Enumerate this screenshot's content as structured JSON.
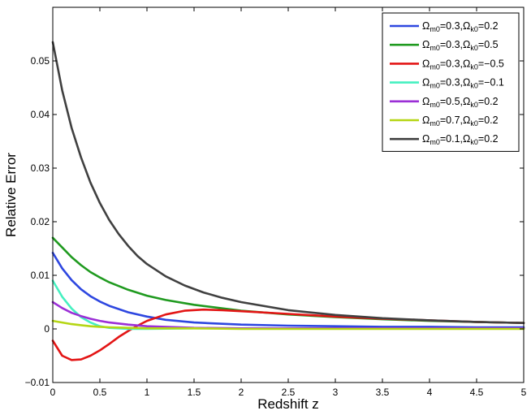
{
  "chart_data": {
    "type": "line",
    "title": "",
    "xlabel": "Redshift z",
    "ylabel": "Relative Error",
    "xlim": [
      0,
      5
    ],
    "ylim": [
      -0.01,
      0.06
    ],
    "xticks": [
      0,
      0.5,
      1,
      1.5,
      2,
      2.5,
      3,
      3.5,
      4,
      4.5,
      5
    ],
    "xtick_labels": [
      "0",
      "0.5",
      "1",
      "1.5",
      "2",
      "2.5",
      "3",
      "3.5",
      "4",
      "4.5",
      "5"
    ],
    "yticks": [
      -0.01,
      0,
      0.01,
      0.02,
      0.03,
      0.04,
      0.05
    ],
    "ytick_labels": [
      "−0.01",
      "0",
      "0.01",
      "0.02",
      "0.03",
      "0.04",
      "0.05"
    ],
    "grid": false,
    "legend_position": "top-right",
    "series": [
      {
        "label": [
          {
            "t": "Ω"
          },
          {
            "t": "m0",
            "sub": true
          },
          {
            "t": "=0.3,Ω"
          },
          {
            "t": "k0",
            "sub": true
          },
          {
            "t": "=0.2"
          }
        ],
        "color": "#2e47e0",
        "x": [
          0,
          0.1,
          0.2,
          0.3,
          0.4,
          0.5,
          0.6,
          0.8,
          1.0,
          1.2,
          1.5,
          2.0,
          2.5,
          3.0,
          3.5,
          4.0,
          4.5,
          5.0
        ],
        "y": [
          0.0142,
          0.0113,
          0.0091,
          0.0074,
          0.0061,
          0.0051,
          0.0043,
          0.0031,
          0.0023,
          0.0017,
          0.0012,
          0.0008,
          0.0006,
          0.0005,
          0.0004,
          0.0004,
          0.0003,
          0.0003
        ]
      },
      {
        "label": [
          {
            "t": "Ω"
          },
          {
            "t": "m0",
            "sub": true
          },
          {
            "t": "=0.3,Ω"
          },
          {
            "t": "k0",
            "sub": true
          },
          {
            "t": "=0.5"
          }
        ],
        "color": "#1f9a1f",
        "x": [
          0,
          0.1,
          0.2,
          0.3,
          0.4,
          0.5,
          0.6,
          0.8,
          1.0,
          1.2,
          1.5,
          2.0,
          2.5,
          3.0,
          3.5,
          4.0,
          4.5,
          5.0
        ],
        "y": [
          0.017,
          0.0152,
          0.0134,
          0.0119,
          0.0106,
          0.0096,
          0.0087,
          0.0073,
          0.0062,
          0.0054,
          0.0045,
          0.0034,
          0.0027,
          0.0022,
          0.0018,
          0.0015,
          0.0013,
          0.0011
        ]
      },
      {
        "label": [
          {
            "t": "Ω"
          },
          {
            "t": "m0",
            "sub": true
          },
          {
            "t": "=0.3,Ω"
          },
          {
            "t": "k0",
            "sub": true
          },
          {
            "t": "=−0.5"
          }
        ],
        "color": "#e31515",
        "x": [
          0,
          0.1,
          0.2,
          0.3,
          0.4,
          0.5,
          0.6,
          0.7,
          0.8,
          0.9,
          1.0,
          1.2,
          1.4,
          1.6,
          1.8,
          2.0,
          2.5,
          3.0,
          3.5,
          4.0,
          4.5,
          5.0
        ],
        "y": [
          -0.0022,
          -0.005,
          -0.0058,
          -0.0057,
          -0.005,
          -0.004,
          -0.0028,
          -0.0015,
          -0.0004,
          0.0006,
          0.0015,
          0.0027,
          0.0034,
          0.0036,
          0.0035,
          0.0033,
          0.0028,
          0.0023,
          0.0019,
          0.0016,
          0.0013,
          0.0011
        ]
      },
      {
        "label": [
          {
            "t": "Ω"
          },
          {
            "t": "m0",
            "sub": true
          },
          {
            "t": "=0.3,Ω"
          },
          {
            "t": "k0",
            "sub": true
          },
          {
            "t": "=−0.1"
          }
        ],
        "color": "#45f0c0",
        "x": [
          0,
          0.1,
          0.2,
          0.3,
          0.4,
          0.5,
          0.6,
          0.8,
          1.0,
          1.5,
          2.0,
          3.0,
          4.0,
          5.0
        ],
        "y": [
          0.009,
          0.006,
          0.0038,
          0.0022,
          0.0012,
          0.0005,
          0.0002,
          0.0,
          0.0,
          0.0001,
          0.0001,
          0.0001,
          0.0001,
          0.0001
        ]
      },
      {
        "label": [
          {
            "t": "Ω"
          },
          {
            "t": "m0",
            "sub": true
          },
          {
            "t": "=0.5,Ω"
          },
          {
            "t": "k0",
            "sub": true
          },
          {
            "t": "=0.2"
          }
        ],
        "color": "#9b2fd6",
        "x": [
          0,
          0.1,
          0.2,
          0.3,
          0.4,
          0.5,
          0.6,
          0.8,
          1.0,
          1.5,
          2.0,
          3.0,
          4.0,
          5.0
        ],
        "y": [
          0.005,
          0.0039,
          0.003,
          0.0024,
          0.0019,
          0.0015,
          0.0012,
          0.0008,
          0.0005,
          0.0002,
          0.0001,
          0.0001,
          0.0001,
          0.0001
        ]
      },
      {
        "label": [
          {
            "t": "Ω"
          },
          {
            "t": "m0",
            "sub": true
          },
          {
            "t": "=0.7,Ω"
          },
          {
            "t": "k0",
            "sub": true
          },
          {
            "t": "=0.2"
          }
        ],
        "color": "#b5d614",
        "x": [
          0,
          0.1,
          0.2,
          0.3,
          0.4,
          0.5,
          0.6,
          0.8,
          1.0,
          1.5,
          2.0,
          3.0,
          4.0,
          5.0
        ],
        "y": [
          0.0015,
          0.0012,
          0.0009,
          0.0007,
          0.0005,
          0.0004,
          0.0003,
          0.0002,
          0.0001,
          0.0001,
          0.0,
          0.0,
          0.0,
          0.0
        ]
      },
      {
        "label": [
          {
            "t": "Ω"
          },
          {
            "t": "m0",
            "sub": true
          },
          {
            "t": "=0.1,Ω"
          },
          {
            "t": "k0",
            "sub": true
          },
          {
            "t": "=0.2"
          }
        ],
        "color": "#404040",
        "x": [
          0,
          0.1,
          0.2,
          0.3,
          0.4,
          0.5,
          0.6,
          0.7,
          0.8,
          0.9,
          1.0,
          1.2,
          1.4,
          1.6,
          1.8,
          2.0,
          2.5,
          3.0,
          3.5,
          4.0,
          4.5,
          5.0
        ],
        "y": [
          0.0535,
          0.0445,
          0.0375,
          0.032,
          0.0273,
          0.0235,
          0.0203,
          0.0177,
          0.0155,
          0.0136,
          0.0121,
          0.0098,
          0.0081,
          0.0068,
          0.0058,
          0.005,
          0.0035,
          0.0026,
          0.002,
          0.0016,
          0.0013,
          0.0011
        ]
      }
    ]
  }
}
